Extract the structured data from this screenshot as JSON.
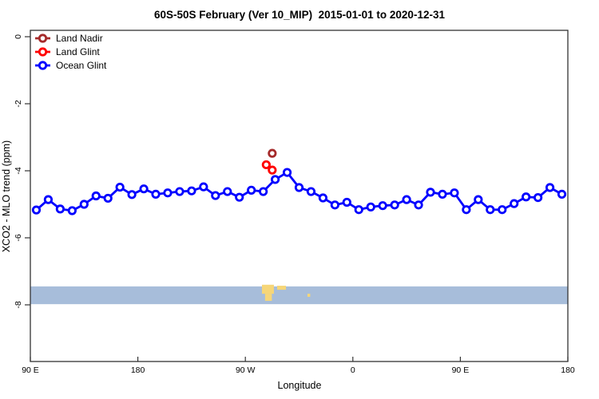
{
  "chart_data": {
    "type": "line",
    "title": "60S-50S February (Ver 10_MIP)  2015-01-01 to 2020-12-31",
    "xlabel": "Longitude",
    "ylabel": "XCO2 - MLO trend (ppm)",
    "x_axis": {
      "note": "Longitude unwrapped eastward starting at 90E; axis_deg 90..540 maps 90E-180-90W-0-90E-180",
      "range_axis_deg": [
        90,
        540
      ],
      "ticks": [
        {
          "axis_deg": 90,
          "label": "90 E"
        },
        {
          "axis_deg": 180,
          "label": "180"
        },
        {
          "axis_deg": 270,
          "label": "90 W"
        },
        {
          "axis_deg": 360,
          "label": "0"
        },
        {
          "axis_deg": 450,
          "label": "90 E"
        },
        {
          "axis_deg": 540,
          "label": "180"
        }
      ]
    },
    "y_axis": {
      "ticks": [
        0,
        -2,
        -4,
        -6,
        -8
      ],
      "range": [
        -9.7,
        0.2
      ],
      "grid": false
    },
    "legend_position": "top-left",
    "series": [
      {
        "name": "Land Nadir",
        "color": "#A52A2A",
        "points": [
          [
            292.5,
            -3.48
          ]
        ]
      },
      {
        "name": "Land Glint",
        "color": "#FF0000",
        "points": [
          [
            287.5,
            -3.82
          ],
          [
            292.5,
            -3.98
          ]
        ]
      },
      {
        "name": "Ocean Glint",
        "color": "#0000FF",
        "points": [
          [
            95,
            -5.17
          ],
          [
            105,
            -4.86
          ],
          [
            115,
            -5.14
          ],
          [
            125,
            -5.19
          ],
          [
            135,
            -5.0
          ],
          [
            145,
            -4.75
          ],
          [
            155,
            -4.82
          ],
          [
            165,
            -4.49
          ],
          [
            175,
            -4.71
          ],
          [
            185,
            -4.54
          ],
          [
            195,
            -4.7
          ],
          [
            205,
            -4.66
          ],
          [
            215,
            -4.62
          ],
          [
            225,
            -4.6
          ],
          [
            235,
            -4.48
          ],
          [
            245,
            -4.74
          ],
          [
            255,
            -4.62
          ],
          [
            265,
            -4.79
          ],
          [
            275,
            -4.58
          ],
          [
            285,
            -4.62
          ],
          [
            295,
            -4.26
          ],
          [
            305,
            -4.05
          ],
          [
            315,
            -4.5
          ],
          [
            325,
            -4.62
          ],
          [
            335,
            -4.81
          ],
          [
            345,
            -5.02
          ],
          [
            355,
            -4.94
          ],
          [
            365,
            -5.16
          ],
          [
            375,
            -5.08
          ],
          [
            385,
            -5.04
          ],
          [
            395,
            -5.02
          ],
          [
            405,
            -4.86
          ],
          [
            415,
            -5.02
          ],
          [
            425,
            -4.64
          ],
          [
            435,
            -4.7
          ],
          [
            445,
            -4.66
          ],
          [
            455,
            -5.16
          ],
          [
            465,
            -4.86
          ],
          [
            475,
            -5.16
          ],
          [
            485,
            -5.16
          ],
          [
            495,
            -4.98
          ],
          [
            505,
            -4.78
          ],
          [
            515,
            -4.8
          ],
          [
            525,
            -4.5
          ],
          [
            535,
            -4.7
          ]
        ]
      }
    ],
    "map_band": {
      "description": "world-map strip of the 60S-50S latitude band drawn across the plot",
      "ocean_color": "#A7BDDA",
      "land_color": "#F6D678",
      "value_top": -7.45,
      "value_bottom": -7.98,
      "land_patches": [
        {
          "axis_deg_start": 283.9,
          "axis_deg_end": 293.9,
          "value_top": -7.4,
          "value_bottom": -7.67
        },
        {
          "axis_deg_start": 286.5,
          "axis_deg_end": 292.2,
          "value_top": -7.67,
          "value_bottom": -7.88
        },
        {
          "axis_deg_start": 296.6,
          "axis_deg_end": 304.0,
          "value_top": -7.43,
          "value_bottom": -7.55
        },
        {
          "axis_deg_start": 322.0,
          "axis_deg_end": 324.3,
          "value_top": -7.67,
          "value_bottom": -7.76
        }
      ]
    },
    "marker_style": "open-circle"
  }
}
